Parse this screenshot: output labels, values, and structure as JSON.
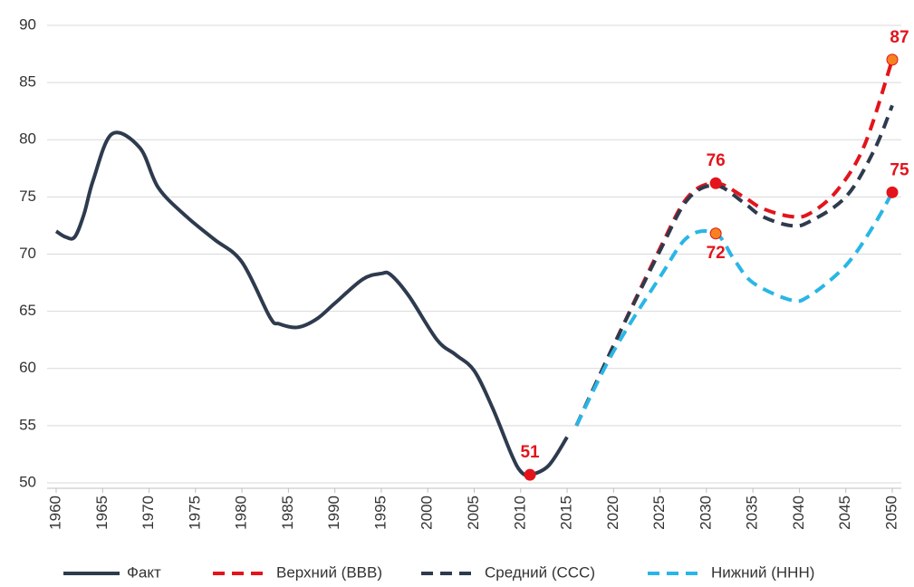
{
  "chart_data": {
    "type": "line",
    "series": [
      {
        "name": "Факт",
        "color": "#2e3b4e",
        "dashed": false,
        "x": [
          1960,
          1961,
          1962,
          1963,
          1964,
          1966,
          1969,
          1971,
          1974,
          1977,
          1980,
          1983,
          1984,
          1986,
          1988,
          1990,
          1993,
          1995,
          1996,
          1998,
          2001,
          2003,
          2005,
          2007,
          2009,
          2010,
          2011,
          2013,
          2015
        ],
        "values": [
          72,
          71.5,
          71.5,
          73.5,
          76.5,
          80.5,
          79.3,
          75.8,
          73.3,
          71.3,
          69.3,
          64.5,
          63.9,
          63.6,
          64.3,
          65.7,
          67.8,
          68.3,
          68.2,
          66.3,
          62.5,
          61.2,
          59.8,
          56.5,
          52.5,
          51,
          50.7,
          51.5,
          54
        ]
      },
      {
        "name": "Верхний (ВВВ)",
        "color": "#e3141b",
        "dashed": true,
        "x": [
          2016,
          2020,
          2025,
          2028,
          2031,
          2034,
          2036,
          2039,
          2041,
          2044,
          2047,
          2050
        ],
        "values": [
          55,
          62,
          70.5,
          75,
          76.2,
          75,
          74,
          73.3,
          73.5,
          75.5,
          79.5,
          87
        ]
      },
      {
        "name": "Средний (ССС)",
        "color": "#2e3b4e",
        "dashed": true,
        "x": [
          2016,
          2020,
          2025,
          2028,
          2031,
          2034,
          2036,
          2039,
          2041,
          2045,
          2048,
          2050
        ],
        "values": [
          55,
          62,
          70.3,
          74.8,
          76,
          74.5,
          73.3,
          72.5,
          72.8,
          75,
          79,
          83
        ]
      },
      {
        "name": "Нижний (ННН)",
        "color": "#29b6e6",
        "dashed": true,
        "x": [
          2016,
          2020,
          2025,
          2028,
          2031,
          2033,
          2035,
          2039,
          2041,
          2045,
          2048,
          2050
        ],
        "values": [
          55,
          61.5,
          68,
          71.5,
          71.8,
          69.5,
          67.5,
          66,
          66.3,
          69,
          72.5,
          75.4
        ]
      }
    ],
    "annotations": [
      {
        "x": 2011,
        "y": 50.7,
        "label": "51",
        "color": "#e3141b"
      },
      {
        "x": 2031,
        "y": 76.2,
        "label": "76",
        "color": "#e3141b"
      },
      {
        "x": 2031,
        "y": 71.8,
        "label": "72",
        "color": "#f5821f"
      },
      {
        "x": 2050,
        "y": 87,
        "label": "87",
        "color": "#f5821f"
      },
      {
        "x": 2050,
        "y": 75.4,
        "label": "75",
        "color": "#e3141b"
      }
    ],
    "xlim": [
      1960,
      2050
    ],
    "xticks": [
      1960,
      1965,
      1970,
      1975,
      1980,
      1985,
      1990,
      1995,
      2000,
      2005,
      2010,
      2015,
      2020,
      2025,
      2030,
      2035,
      2040,
      2045,
      2050
    ],
    "ylim": [
      50,
      90
    ],
    "yticks": [
      50,
      55,
      60,
      65,
      70,
      75,
      80,
      85,
      90
    ],
    "grid": true,
    "legend": "bottom"
  }
}
